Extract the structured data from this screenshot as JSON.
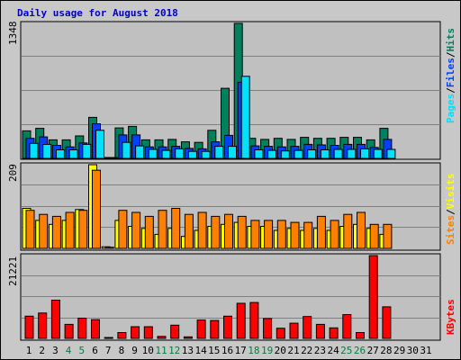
{
  "title": "Daily usage for August 2018",
  "colors": {
    "title": "#0000cc",
    "plot_bg": "#c0c0c0",
    "grid": "#808080",
    "hits": "#00805c",
    "files": "#0040ff",
    "pages": "#00e0ff",
    "visits": "#ffff00",
    "sites": "#ff8000",
    "kbytes": "#ff0000",
    "weekend": "#008040",
    "weekday": "#000000"
  },
  "side_labels": {
    "panel1": {
      "pages": "Pages",
      "sep1": "/",
      "files": "Files",
      "sep2": "/",
      "hits": "Hits"
    },
    "panel2": {
      "sites": "Sites",
      "sep": "/",
      "visits": "Visits"
    },
    "panel3": {
      "kbytes": "KBytes"
    }
  },
  "chart_data": [
    {
      "type": "bar",
      "ymax_label": "1348",
      "ylim": [
        0,
        1348
      ],
      "categories": [
        "1",
        "2",
        "3",
        "4",
        "5",
        "6",
        "7",
        "8",
        "9",
        "10",
        "11",
        "12",
        "13",
        "14",
        "15",
        "16",
        "17",
        "18",
        "19",
        "20",
        "21",
        "22",
        "23",
        "24",
        "25",
        "26",
        "27",
        "28",
        "29",
        "30",
        "31"
      ],
      "series": [
        {
          "name": "Hits",
          "values": [
            275,
            300,
            185,
            185,
            225,
            410,
            8,
            305,
            320,
            185,
            185,
            190,
            165,
            160,
            280,
            700,
            1348,
            200,
            190,
            200,
            190,
            210,
            200,
            200,
            210,
            210,
            185,
            300,
            0,
            0,
            0
          ]
        },
        {
          "name": "Files",
          "values": [
            200,
            215,
            130,
            115,
            155,
            345,
            5,
            235,
            235,
            115,
            115,
            120,
            100,
            95,
            165,
            230,
            760,
            125,
            120,
            115,
            120,
            140,
            135,
            130,
            140,
            140,
            110,
            190,
            0,
            0,
            0
          ]
        },
        {
          "name": "Pages",
          "values": [
            150,
            140,
            85,
            85,
            140,
            280,
            5,
            160,
            125,
            90,
            80,
            95,
            70,
            70,
            120,
            120,
            820,
            85,
            80,
            75,
            80,
            85,
            85,
            90,
            90,
            95,
            90,
            90,
            0,
            0,
            0
          ]
        }
      ]
    },
    {
      "type": "bar",
      "ymax_label": "209",
      "ylim": [
        0,
        209
      ],
      "categories": [
        "1",
        "2",
        "3",
        "4",
        "5",
        "6",
        "7",
        "8",
        "9",
        "10",
        "11",
        "12",
        "13",
        "14",
        "15",
        "16",
        "17",
        "18",
        "19",
        "20",
        "21",
        "22",
        "23",
        "24",
        "25",
        "26",
        "27",
        "28",
        "29",
        "30",
        "31"
      ],
      "series": [
        {
          "name": "Visits",
          "values": [
            100,
            70,
            60,
            70,
            97,
            209,
            4,
            70,
            55,
            50,
            35,
            50,
            30,
            45,
            55,
            60,
            65,
            55,
            55,
            45,
            50,
            45,
            50,
            45,
            55,
            60,
            50,
            35,
            0,
            0,
            0
          ]
        },
        {
          "name": "Sites",
          "values": [
            95,
            85,
            80,
            90,
            95,
            195,
            3,
            95,
            90,
            80,
            95,
            100,
            85,
            90,
            80,
            85,
            80,
            70,
            70,
            70,
            65,
            65,
            80,
            70,
            85,
            90,
            60,
            60,
            0,
            0,
            0
          ]
        }
      ]
    },
    {
      "type": "bar",
      "ymax_label": "21221",
      "ylim": [
        0,
        21221
      ],
      "categories": [
        "1",
        "2",
        "3",
        "4",
        "5",
        "6",
        "7",
        "8",
        "9",
        "10",
        "11",
        "12",
        "13",
        "14",
        "15",
        "16",
        "17",
        "18",
        "19",
        "20",
        "21",
        "22",
        "23",
        "24",
        "25",
        "26",
        "27",
        "28",
        "29",
        "30",
        "31"
      ],
      "series": [
        {
          "name": "KBytes",
          "values": [
            5700,
            6500,
            9800,
            3600,
            5200,
            4800,
            120,
            1500,
            3000,
            3000,
            500,
            3400,
            400,
            4700,
            4600,
            5700,
            9000,
            9200,
            5100,
            2600,
            3900,
            5600,
            3600,
            2700,
            6100,
            1500,
            21221,
            8100,
            0,
            0,
            0
          ]
        }
      ]
    }
  ],
  "x_axis": {
    "labels": [
      "1",
      "2",
      "3",
      "4",
      "5",
      "6",
      "7",
      "8",
      "9",
      "10",
      "11",
      "12",
      "13",
      "14",
      "15",
      "16",
      "17",
      "18",
      "19",
      "20",
      "21",
      "22",
      "23",
      "24",
      "25",
      "26",
      "27",
      "28",
      "29",
      "30",
      "31"
    ],
    "weekend_days": [
      "4",
      "5",
      "11",
      "12",
      "18",
      "19",
      "25",
      "26"
    ]
  }
}
